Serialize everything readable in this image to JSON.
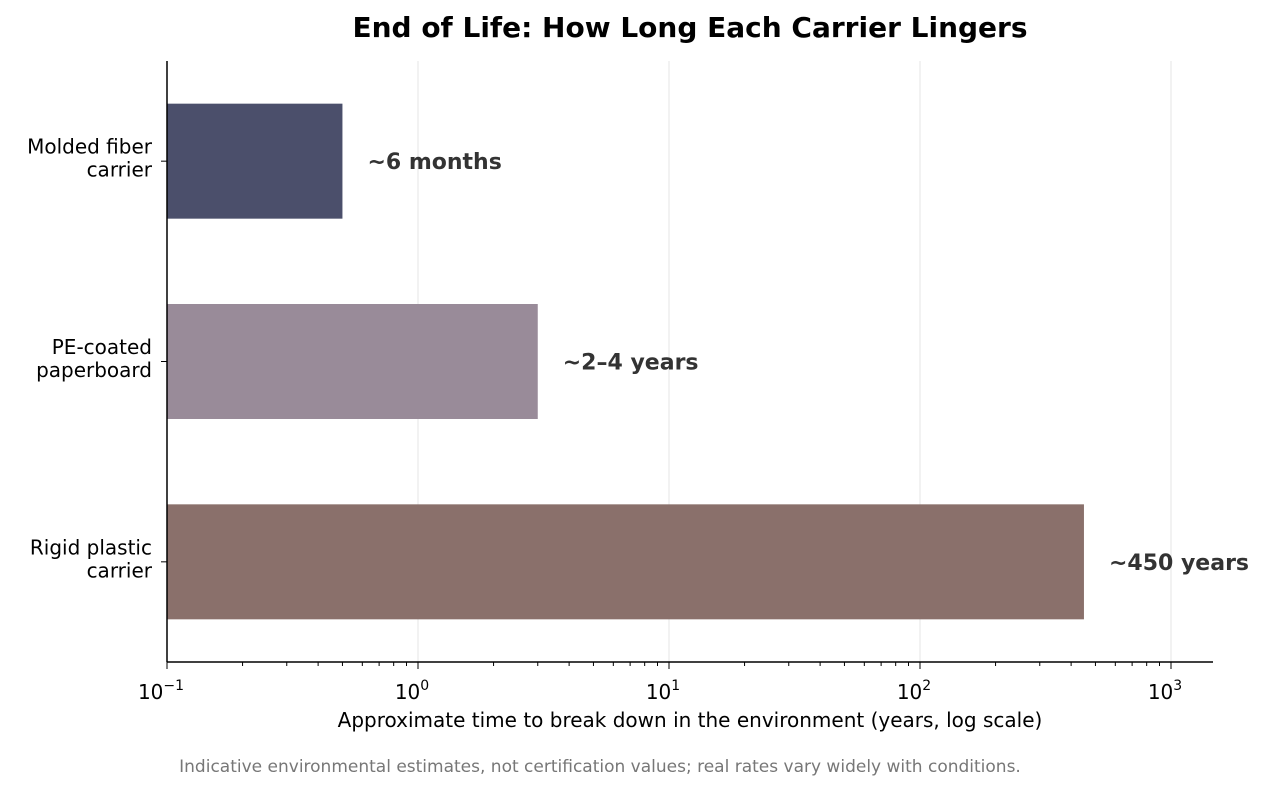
{
  "chart_data": {
    "type": "bar",
    "orientation": "horizontal",
    "title": "End of Life: How Long Each Carrier Lingers",
    "xlabel": "Approximate time to break down in the environment (years, log scale)",
    "ylabel": "",
    "xscale": "log",
    "xlim": [
      0.1,
      1500
    ],
    "grid": "x-major",
    "categories": [
      [
        "Molded fiber",
        "carrier"
      ],
      [
        "PE-coated",
        "paperboard"
      ],
      [
        "Rigid plastic",
        "carrier"
      ]
    ],
    "values": [
      0.5,
      3,
      450
    ],
    "colors": [
      "#4b4f6b",
      "#998b99",
      "#8a706b"
    ],
    "data_labels": [
      "~6 months",
      "~2–4 years",
      "~450 years"
    ],
    "ticks": [
      {
        "base": "10",
        "exp": "−1"
      },
      {
        "base": "10",
        "exp": "0"
      },
      {
        "base": "10",
        "exp": "1"
      },
      {
        "base": "10",
        "exp": "2"
      },
      {
        "base": "10",
        "exp": "3"
      }
    ],
    "footnote": "Indicative environmental estimates, not certification values; real rates vary widely with conditions."
  }
}
